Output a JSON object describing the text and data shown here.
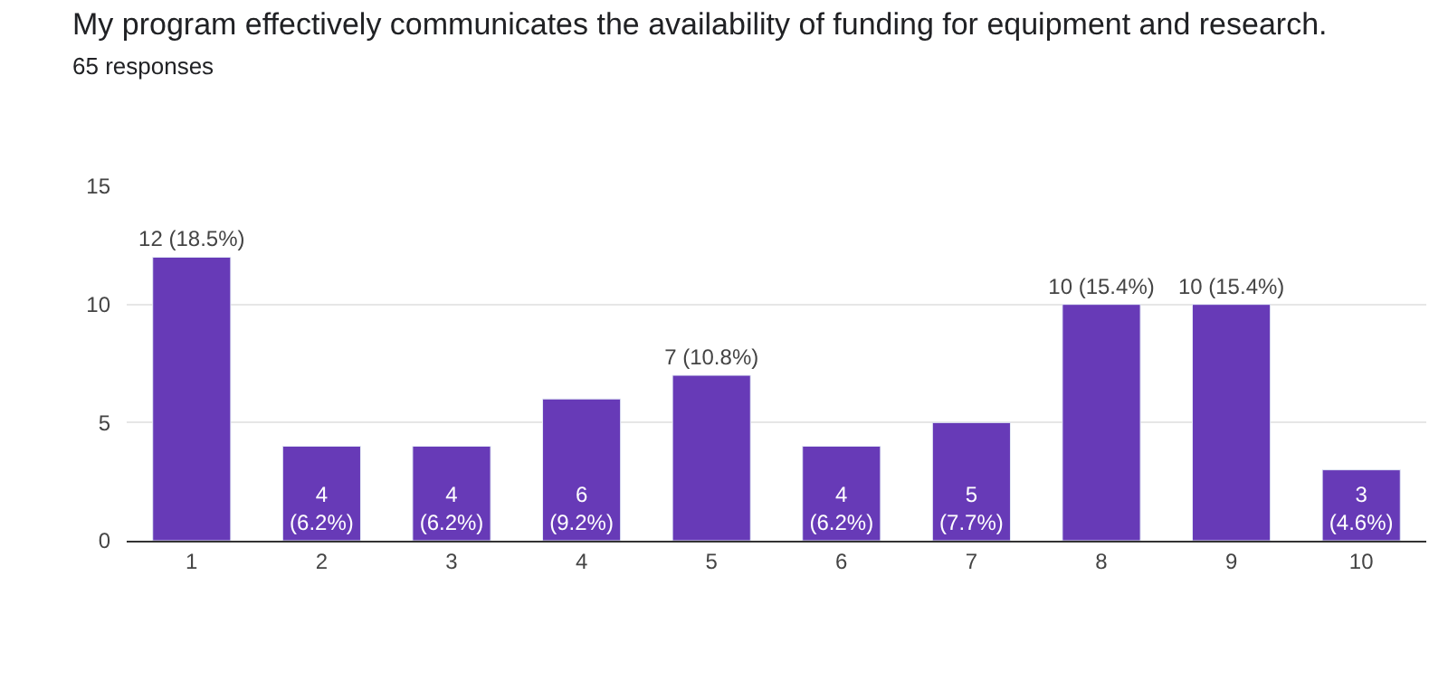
{
  "chart_data": {
    "type": "bar",
    "title": "My program effectively communicates the availability of funding for equipment and research.",
    "subtitle": "65 responses",
    "categories": [
      "1",
      "2",
      "3",
      "4",
      "5",
      "6",
      "7",
      "8",
      "9",
      "10"
    ],
    "values": [
      12,
      4,
      4,
      6,
      7,
      4,
      5,
      10,
      10,
      3
    ],
    "value_labels": [
      "12 (18.5%)",
      "4 (6.2%)",
      "4 (6.2%)",
      "6 (9.2%)",
      "7 (10.8%)",
      "4 (6.2%)",
      "5 (7.7%)",
      "10 (15.4%)",
      "10 (15.4%)",
      "3 (4.6%)"
    ],
    "color": "#673ab7",
    "ylim": [
      0,
      15
    ],
    "yticks": [
      0,
      5,
      10,
      15
    ],
    "grid": "y"
  }
}
